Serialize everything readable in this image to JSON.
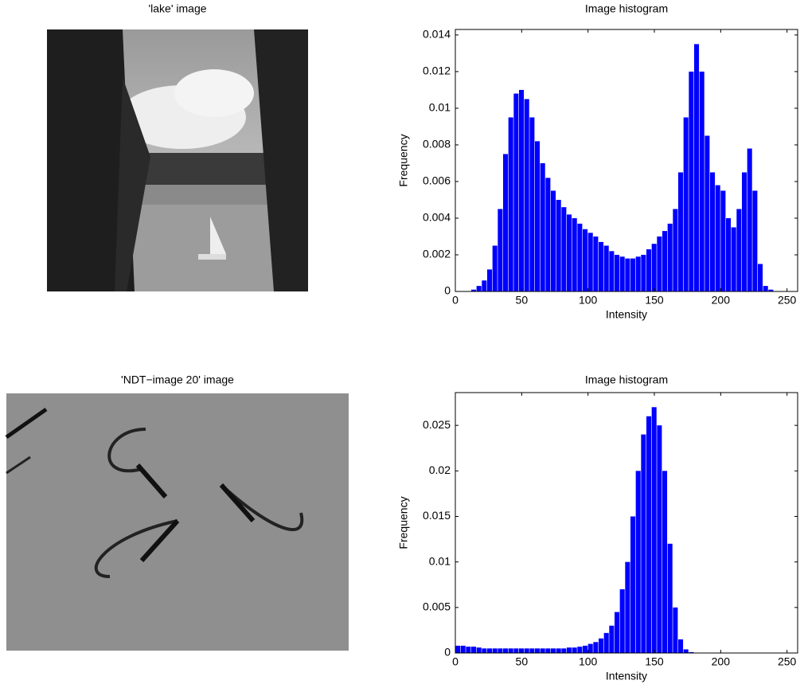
{
  "chart_data": [
    {
      "type": "image",
      "title": "'lake' image"
    },
    {
      "type": "histogram",
      "title": "Image histogram",
      "xlabel": "Intensity",
      "ylabel": "Frequency",
      "color": "#0000ff",
      "bins": [
        0,
        4,
        8,
        12,
        16,
        20,
        24,
        28,
        32,
        36,
        40,
        44,
        48,
        52,
        56,
        60,
        64,
        68,
        72,
        76,
        80,
        84,
        88,
        92,
        96,
        100,
        104,
        108,
        112,
        116,
        120,
        124,
        128,
        132,
        136,
        140,
        144,
        148,
        152,
        156,
        160,
        164,
        168,
        172,
        176,
        180,
        184,
        188,
        192,
        196,
        200,
        204,
        208,
        212,
        216,
        220,
        224,
        228,
        232,
        236,
        240,
        244,
        248,
        252,
        256
      ],
      "values": [
        0,
        0,
        0,
        0.0001,
        0.0003,
        0.0006,
        0.0012,
        0.0025,
        0.0045,
        0.0075,
        0.0095,
        0.0108,
        0.011,
        0.0105,
        0.0095,
        0.0082,
        0.007,
        0.0062,
        0.0055,
        0.005,
        0.0046,
        0.0042,
        0.004,
        0.0037,
        0.0034,
        0.0032,
        0.003,
        0.0027,
        0.0025,
        0.0022,
        0.002,
        0.0019,
        0.0018,
        0.0018,
        0.0019,
        0.002,
        0.0023,
        0.0026,
        0.003,
        0.0033,
        0.0037,
        0.0045,
        0.0065,
        0.0095,
        0.012,
        0.0135,
        0.012,
        0.0085,
        0.0065,
        0.0058,
        0.0055,
        0.004,
        0.0035,
        0.0045,
        0.0065,
        0.0078,
        0.0055,
        0.0015,
        0.0003,
        0.0001,
        0,
        0,
        0,
        0
      ],
      "xlim": [
        0,
        258
      ],
      "ylim": [
        0,
        0.0143
      ],
      "xticks": [
        0,
        50,
        100,
        150,
        200,
        250
      ],
      "yticks": [
        0,
        0.002,
        0.004,
        0.006,
        0.008,
        0.01,
        0.012,
        0.014
      ]
    },
    {
      "type": "image",
      "title": "'NDT−image 20' image"
    },
    {
      "type": "histogram",
      "title": "Image histogram",
      "xlabel": "Intensity",
      "ylabel": "Frequency",
      "color": "#0000ff",
      "bins": [
        0,
        4,
        8,
        12,
        16,
        20,
        24,
        28,
        32,
        36,
        40,
        44,
        48,
        52,
        56,
        60,
        64,
        68,
        72,
        76,
        80,
        84,
        88,
        92,
        96,
        100,
        104,
        108,
        112,
        116,
        120,
        124,
        128,
        132,
        136,
        140,
        144,
        148,
        152,
        156,
        160,
        164,
        168,
        172,
        176,
        180,
        184,
        188,
        192,
        196,
        200,
        204,
        208,
        212,
        216,
        220,
        224,
        228,
        232,
        236,
        240,
        244,
        248,
        252,
        256
      ],
      "values": [
        0.0008,
        0.0008,
        0.0007,
        0.0007,
        0.0006,
        0.0005,
        0.0005,
        0.0005,
        0.0005,
        0.0005,
        0.0005,
        0.0005,
        0.0005,
        0.0005,
        0.0005,
        0.0005,
        0.0005,
        0.0005,
        0.0005,
        0.0005,
        0.0005,
        0.0006,
        0.0006,
        0.0007,
        0.0008,
        0.001,
        0.0012,
        0.0016,
        0.0022,
        0.003,
        0.0045,
        0.007,
        0.01,
        0.015,
        0.02,
        0.024,
        0.026,
        0.027,
        0.025,
        0.02,
        0.012,
        0.005,
        0.0015,
        0.0004,
        0.0001,
        0,
        0,
        0,
        0,
        0,
        0,
        0,
        0,
        0,
        0,
        0,
        0,
        0,
        0,
        0,
        0,
        0,
        0,
        0
      ],
      "xlim": [
        0,
        258
      ],
      "ylim": [
        0,
        0.0286
      ],
      "xticks": [
        0,
        50,
        100,
        150,
        200,
        250
      ],
      "yticks": [
        0,
        0.005,
        0.01,
        0.015,
        0.02,
        0.025
      ]
    }
  ]
}
